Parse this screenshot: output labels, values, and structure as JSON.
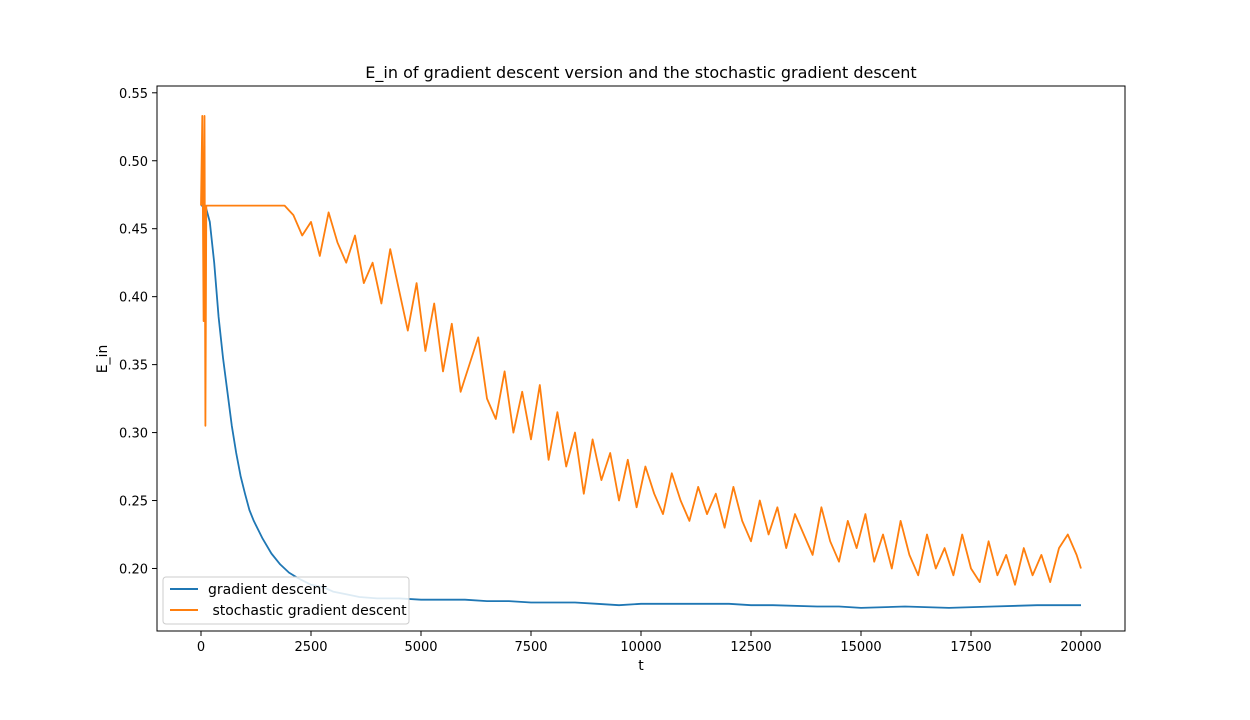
{
  "chart_data": {
    "type": "line",
    "title": "E_in of gradient descent version and the stochastic gradient descent",
    "xlabel": "t",
    "ylabel": "E_in",
    "xlim": [
      -1000,
      21000
    ],
    "ylim": [
      0.154,
      0.555
    ],
    "xticks": [
      0,
      2500,
      5000,
      7500,
      10000,
      12500,
      15000,
      17500,
      20000
    ],
    "xtick_labels": [
      "0",
      "2500",
      "5000",
      "7500",
      "10000",
      "12500",
      "15000",
      "17500",
      "20000"
    ],
    "yticks": [
      0.2,
      0.25,
      0.3,
      0.35,
      0.4,
      0.45,
      0.5,
      0.55
    ],
    "ytick_labels": [
      "0.20",
      "0.25",
      "0.30",
      "0.35",
      "0.40",
      "0.45",
      "0.50",
      "0.55"
    ],
    "grid": false,
    "legend_position": "lower-left",
    "series": [
      {
        "name": "gradient descent",
        "color": "#1f77b4",
        "x": [
          0,
          100,
          200,
          300,
          400,
          500,
          600,
          700,
          800,
          900,
          1000,
          1100,
          1200,
          1400,
          1600,
          1800,
          2000,
          2200,
          2500,
          2800,
          3000,
          3300,
          3600,
          4000,
          4500,
          5000,
          5500,
          6000,
          6500,
          7000,
          7500,
          8000,
          8500,
          9000,
          9500,
          10000,
          11000,
          12000,
          12500,
          13000,
          14000,
          14500,
          15000,
          16000,
          17000,
          18000,
          19000,
          20000
        ],
        "y": [
          0.467,
          0.467,
          0.455,
          0.425,
          0.385,
          0.355,
          0.33,
          0.305,
          0.285,
          0.268,
          0.255,
          0.243,
          0.235,
          0.222,
          0.211,
          0.203,
          0.197,
          0.193,
          0.188,
          0.186,
          0.183,
          0.181,
          0.179,
          0.178,
          0.178,
          0.177,
          0.177,
          0.177,
          0.176,
          0.176,
          0.175,
          0.175,
          0.175,
          0.174,
          0.173,
          0.174,
          0.174,
          0.174,
          0.173,
          0.173,
          0.172,
          0.172,
          0.171,
          0.172,
          0.171,
          0.172,
          0.173,
          0.173
        ]
      },
      {
        "name": " stochastic gradient descent",
        "color": "#ff7f0e",
        "x": [
          0,
          30,
          60,
          80,
          100,
          120,
          140,
          200,
          400,
          600,
          800,
          1000,
          1300,
          1600,
          1900,
          2100,
          2300,
          2500,
          2700,
          2900,
          3100,
          3300,
          3500,
          3700,
          3900,
          4100,
          4300,
          4500,
          4700,
          4900,
          5100,
          5300,
          5500,
          5700,
          5900,
          6100,
          6300,
          6500,
          6700,
          6900,
          7100,
          7300,
          7500,
          7700,
          7900,
          8100,
          8300,
          8500,
          8700,
          8900,
          9100,
          9300,
          9500,
          9700,
          9900,
          10100,
          10300,
          10500,
          10700,
          10900,
          11100,
          11300,
          11500,
          11700,
          11900,
          12100,
          12300,
          12500,
          12700,
          12900,
          13100,
          13300,
          13500,
          13700,
          13900,
          14100,
          14300,
          14500,
          14700,
          14900,
          15100,
          15300,
          15500,
          15700,
          15900,
          16100,
          16300,
          16500,
          16700,
          16900,
          17100,
          17300,
          17500,
          17700,
          17900,
          18100,
          18300,
          18500,
          18700,
          18900,
          19100,
          19300,
          19500,
          19700,
          19900,
          20000
        ],
        "y": [
          0.467,
          0.533,
          0.382,
          0.533,
          0.305,
          0.467,
          0.467,
          0.467,
          0.467,
          0.467,
          0.467,
          0.467,
          0.467,
          0.467,
          0.467,
          0.46,
          0.445,
          0.455,
          0.43,
          0.462,
          0.44,
          0.425,
          0.445,
          0.41,
          0.425,
          0.395,
          0.435,
          0.405,
          0.375,
          0.41,
          0.36,
          0.395,
          0.345,
          0.38,
          0.33,
          0.35,
          0.37,
          0.325,
          0.31,
          0.345,
          0.3,
          0.33,
          0.295,
          0.335,
          0.28,
          0.315,
          0.275,
          0.3,
          0.255,
          0.295,
          0.265,
          0.285,
          0.25,
          0.28,
          0.245,
          0.275,
          0.255,
          0.24,
          0.27,
          0.25,
          0.235,
          0.26,
          0.24,
          0.255,
          0.23,
          0.26,
          0.235,
          0.22,
          0.25,
          0.225,
          0.245,
          0.215,
          0.24,
          0.225,
          0.21,
          0.245,
          0.22,
          0.205,
          0.235,
          0.215,
          0.24,
          0.205,
          0.225,
          0.2,
          0.235,
          0.21,
          0.195,
          0.225,
          0.2,
          0.215,
          0.195,
          0.225,
          0.2,
          0.19,
          0.22,
          0.195,
          0.21,
          0.188,
          0.215,
          0.195,
          0.21,
          0.19,
          0.215,
          0.225,
          0.21,
          0.2
        ]
      }
    ]
  }
}
